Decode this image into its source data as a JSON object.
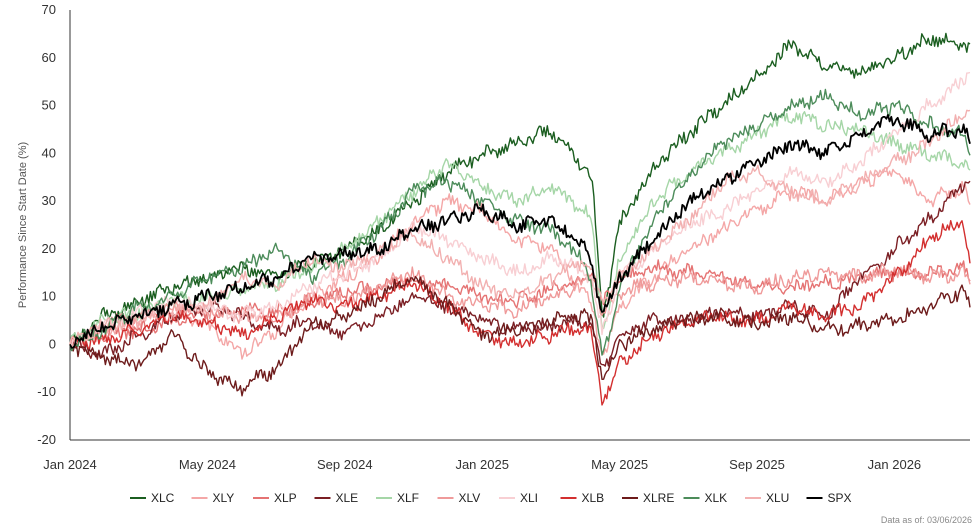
{
  "footnote": "Data as of: 03/06/2026",
  "chart_data": {
    "type": "line",
    "title": "",
    "xlabel": "",
    "ylabel": "Performance Since Start Date (%)",
    "ylim": [
      -20,
      70
    ],
    "yticks": [
      "-20",
      "-10",
      "0",
      "10",
      "20",
      "30",
      "40",
      "50",
      "60",
      "70"
    ],
    "xlim": [
      0,
      26.2
    ],
    "xticks": [
      {
        "label": "Jan 2024",
        "month": 0
      },
      {
        "label": "May 2024",
        "month": 4
      },
      {
        "label": "Sep 2024",
        "month": 8
      },
      {
        "label": "Jan 2025",
        "month": 12
      },
      {
        "label": "May 2025",
        "month": 16
      },
      {
        "label": "Sep 2025",
        "month": 20
      },
      {
        "label": "Jan 2026",
        "month": 24
      }
    ],
    "x": [
      0,
      1,
      2,
      3,
      4,
      5,
      6,
      7,
      8,
      9,
      10,
      11,
      12,
      13,
      14,
      15,
      15.2,
      15.5,
      16,
      17,
      18,
      19,
      20,
      21,
      22,
      23,
      24,
      25,
      26,
      26.2
    ],
    "series": [
      {
        "name": "XLC",
        "color": "#1b5e20",
        "values": [
          0,
          6,
          9,
          12,
          14,
          16,
          14,
          17,
          20,
          24,
          30,
          36,
          40,
          42,
          45,
          37,
          35,
          5,
          25,
          37,
          44,
          50,
          56,
          63,
          58,
          57,
          60,
          64,
          63,
          62
        ]
      },
      {
        "name": "XLY",
        "color": "#f4a7a7",
        "values": [
          0,
          3,
          5,
          7,
          4,
          -2,
          3,
          10,
          14,
          18,
          26,
          30,
          28,
          22,
          20,
          10,
          8,
          -3,
          8,
          14,
          20,
          24,
          28,
          32,
          30,
          34,
          36,
          30,
          33,
          29
        ]
      },
      {
        "name": "XLP",
        "color": "#e57373",
        "values": [
          0,
          2,
          3,
          5,
          6,
          7,
          7,
          9,
          11,
          12,
          14,
          12,
          10,
          9,
          12,
          14,
          15,
          8,
          14,
          16,
          15,
          14,
          12,
          12,
          13,
          14,
          15,
          15,
          16,
          14
        ]
      },
      {
        "name": "XLE",
        "color": "#7b1f24",
        "values": [
          0,
          -2,
          2,
          6,
          8,
          6,
          3,
          5,
          2,
          6,
          10,
          8,
          5,
          3,
          4,
          5,
          4,
          -6,
          2,
          5,
          5,
          7,
          6,
          8,
          6,
          14,
          20,
          26,
          33,
          34
        ]
      },
      {
        "name": "XLF",
        "color": "#a5d6a7",
        "values": [
          0,
          5,
          7,
          9,
          10,
          11,
          13,
          16,
          20,
          26,
          32,
          38,
          33,
          30,
          33,
          28,
          25,
          2,
          18,
          30,
          36,
          40,
          44,
          48,
          46,
          45,
          42,
          40,
          38,
          36
        ]
      },
      {
        "name": "XLV",
        "color": "#ef9a9a",
        "values": [
          0,
          4,
          6,
          8,
          7,
          6,
          5,
          10,
          9,
          12,
          15,
          10,
          8,
          7,
          10,
          13,
          14,
          6,
          11,
          13,
          14,
          13,
          12,
          14,
          15,
          14,
          16,
          14,
          15,
          13
        ]
      },
      {
        "name": "XLI",
        "color": "#f8cfd3",
        "values": [
          0,
          4,
          7,
          9,
          8,
          6,
          8,
          12,
          15,
          18,
          25,
          22,
          18,
          15,
          18,
          15,
          14,
          2,
          14,
          20,
          25,
          28,
          32,
          36,
          34,
          38,
          44,
          50,
          55,
          57
        ]
      },
      {
        "name": "XLB",
        "color": "#d32f2f",
        "values": [
          0,
          1,
          3,
          6,
          5,
          2,
          6,
          9,
          8,
          10,
          13,
          8,
          2,
          0,
          2,
          4,
          2,
          -12,
          -4,
          2,
          5,
          6,
          5,
          8,
          6,
          8,
          14,
          22,
          26,
          17
        ]
      },
      {
        "name": "XLRE",
        "color": "#6d1b1b",
        "values": [
          0,
          -3,
          -4,
          2,
          -6,
          -9,
          -5,
          4,
          6,
          10,
          14,
          8,
          2,
          3,
          5,
          6,
          5,
          -8,
          0,
          3,
          5,
          6,
          4,
          6,
          3,
          4,
          5,
          8,
          11,
          8
        ]
      },
      {
        "name": "XLK",
        "color": "#4c8c5a",
        "values": [
          0,
          3,
          8,
          10,
          14,
          16,
          20,
          14,
          18,
          24,
          32,
          34,
          30,
          26,
          24,
          17,
          12,
          -4,
          12,
          26,
          35,
          42,
          46,
          50,
          52,
          48,
          50,
          46,
          44,
          41
        ]
      },
      {
        "name": "XLU",
        "color": "#f2b0b0",
        "values": [
          0,
          4,
          5,
          7,
          8,
          14,
          12,
          18,
          16,
          20,
          23,
          18,
          12,
          10,
          14,
          18,
          16,
          8,
          14,
          20,
          26,
          34,
          36,
          32,
          30,
          34,
          38,
          42,
          48,
          49
        ]
      },
      {
        "name": "SPX",
        "color": "#000000",
        "values": [
          0,
          4,
          6,
          8,
          10,
          12,
          14,
          18,
          19,
          20,
          24,
          26,
          28,
          25,
          26,
          20,
          17,
          6,
          14,
          22,
          30,
          34,
          38,
          42,
          40,
          44,
          47,
          44,
          45,
          42
        ]
      }
    ],
    "legend": {
      "position": "bottom-center"
    },
    "grid": false
  }
}
